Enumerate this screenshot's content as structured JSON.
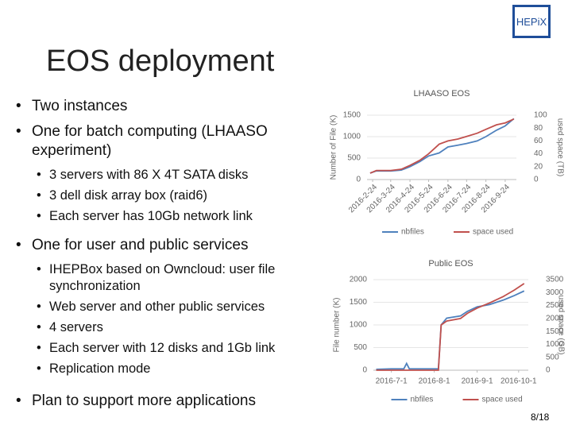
{
  "slide": {
    "logo": "HEPiX",
    "title": "EOS deployment",
    "page": "8/18",
    "bullets": [
      {
        "text": "Two instances"
      },
      {
        "text": "One for batch computing (LHAASO experiment)",
        "sub": [
          "3 servers with 86 X 4T SATA disks",
          "3 dell disk array box (raid6)",
          "Each server has 10Gb network link"
        ]
      },
      {
        "text": "One for user and public services",
        "sub": [
          "IHEPBox based on Owncloud: user file synchronization",
          "Web server and other public services",
          "4 servers",
          "Each server with 12 disks and 1Gb link",
          "Replication mode"
        ]
      },
      {
        "text": "Plan to support more applications"
      }
    ]
  },
  "chart_data": [
    {
      "type": "line",
      "title": "LHAASO EOS",
      "y_label": "Number of File (K)",
      "y2_label": "used space (TB)",
      "x": [
        "2016-2-20",
        "2016-3-1",
        "2016-3-24",
        "2016-4-10",
        "2016-4-24",
        "2016-5-10",
        "2016-5-24",
        "2016-6-10",
        "2016-6-24",
        "2016-7-10",
        "2016-7-24",
        "2016-8-10",
        "2016-8-24",
        "2016-9-10",
        "2016-9-24",
        "2016-10-8"
      ],
      "xlim": [
        "2016-2-15",
        "2016-10-12"
      ],
      "xticks": [
        "2016-2-24",
        "2016-3-24",
        "2016-4-24",
        "2016-5-24",
        "2016-6-24",
        "2016-7-24",
        "2016-8-24",
        "2016-9-24"
      ],
      "ylim": [
        0,
        1500
      ],
      "yticks": [
        0,
        500,
        1000,
        1500
      ],
      "y2lim": [
        0,
        100
      ],
      "y2ticks": [
        0,
        20,
        40,
        60,
        80,
        100
      ],
      "grid": true,
      "series": [
        {
          "name": "nbfiles",
          "color": "#4f81bd",
          "values": [
            150,
            200,
            200,
            220,
            300,
            420,
            550,
            620,
            760,
            800,
            840,
            900,
            1000,
            1150,
            1250,
            1420
          ]
        },
        {
          "name": "space used",
          "color": "#c0504d",
          "axis": "y2",
          "values": [
            10,
            14,
            14,
            16,
            22,
            30,
            40,
            55,
            60,
            63,
            67,
            72,
            78,
            85,
            88,
            94
          ]
        }
      ]
    },
    {
      "type": "line",
      "title": "Public EOS",
      "y_label": "File number (K)",
      "y2_label": "used space (GB)",
      "x": [
        "2016-6-20",
        "2016-7-1",
        "2016-7-10",
        "2016-7-12",
        "2016-7-14",
        "2016-7-20",
        "2016-8-4",
        "2016-8-6",
        "2016-8-10",
        "2016-8-20",
        "2016-8-25",
        "2016-9-1",
        "2016-9-10",
        "2016-9-20",
        "2016-9-28",
        "2016-10-5"
      ],
      "xlim": [
        "2016-6-18",
        "2016-10-8"
      ],
      "xticks": [
        "2016-7-1",
        "2016-8-1",
        "2016-9-1",
        "2016-10-1"
      ],
      "ylim": [
        0,
        2000
      ],
      "yticks": [
        0,
        500,
        1000,
        1500,
        2000
      ],
      "y2lim": [
        0,
        3500
      ],
      "y2ticks": [
        0,
        500,
        1000,
        1500,
        2000,
        2500,
        3000,
        3500
      ],
      "grid": true,
      "series": [
        {
          "name": "nbfiles",
          "color": "#4f81bd",
          "values": [
            20,
            30,
            30,
            150,
            30,
            30,
            30,
            1000,
            1150,
            1200,
            1300,
            1400,
            1450,
            1550,
            1650,
            1750
          ]
        },
        {
          "name": "space used",
          "color": "#c0504d",
          "axis": "y2",
          "values": [
            0,
            0,
            0,
            0,
            0,
            0,
            0,
            1750,
            1900,
            2000,
            2200,
            2400,
            2600,
            2850,
            3100,
            3350
          ]
        }
      ]
    }
  ]
}
